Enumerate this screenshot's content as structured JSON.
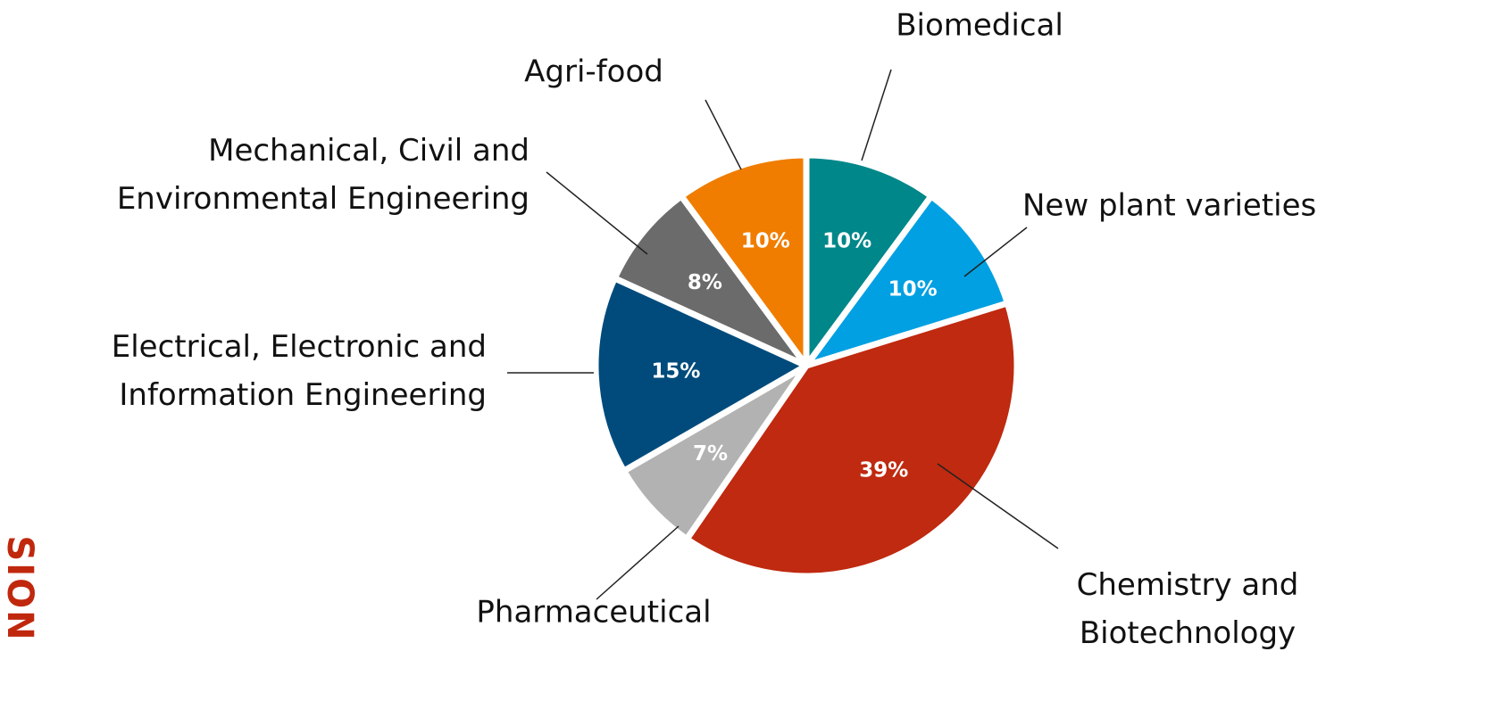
{
  "side_label": "SION",
  "chart_data": {
    "type": "pie",
    "categories": [
      "Biomedical",
      "New plant varieties",
      "Chemistry and Biotechnology",
      "Pharmaceutical",
      "Electrical, Electronic and Information Engineering",
      "Mechanical, Civil and Environmental Engineering",
      "Agri-food"
    ],
    "values": [
      10,
      10,
      39,
      7,
      15,
      8,
      10
    ],
    "value_labels": [
      "10%",
      "10%",
      "39%",
      "7%",
      "15%",
      "8%",
      "10%"
    ],
    "colors": [
      "#00878a",
      "#00a0e2",
      "#bf2a10",
      "#b2b2b2",
      "#004b7c",
      "#6b6b6b",
      "#f07d00"
    ]
  }
}
